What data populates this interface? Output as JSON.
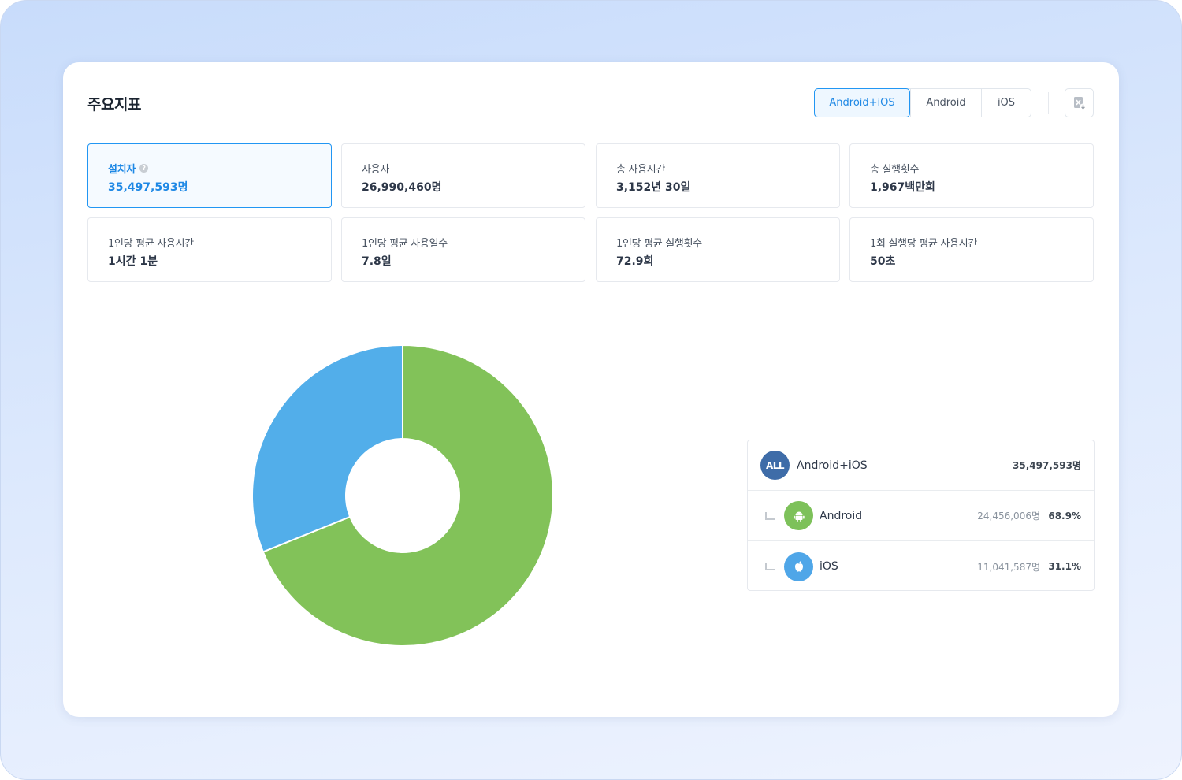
{
  "page": {
    "title": "주요지표"
  },
  "platform_filter": {
    "options": [
      {
        "label": "Android+iOS",
        "active": true
      },
      {
        "label": "Android",
        "active": false
      },
      {
        "label": "iOS",
        "active": false
      }
    ]
  },
  "toolbar": {
    "excel_icon": "excel-download-icon"
  },
  "metrics": [
    {
      "label": "설치자",
      "value": "35,497,593명",
      "selected": true,
      "help": "?"
    },
    {
      "label": "사용자",
      "value": "26,990,460명",
      "selected": false
    },
    {
      "label": "총 사용시간",
      "value": "3,152년 30일",
      "selected": false
    },
    {
      "label": "총 실행횟수",
      "value": "1,967백만회",
      "selected": false
    },
    {
      "label": "1인당 평균 사용시간",
      "value": "1시간 1분",
      "selected": false
    },
    {
      "label": "1인당 평균 사용일수",
      "value": "7.8일",
      "selected": false
    },
    {
      "label": "1인당 평균 실행횟수",
      "value": "72.9회",
      "selected": false
    },
    {
      "label": "1회 실행당 평균 사용시간",
      "value": "50초",
      "selected": false
    }
  ],
  "legend": {
    "total": {
      "badge": "ALL",
      "name": "Android+iOS",
      "count": "35,497,593명"
    },
    "rows": [
      {
        "icon": "android-icon",
        "name": "Android",
        "count": "24,456,006명",
        "percent": "68.9%"
      },
      {
        "icon": "apple-icon",
        "name": "iOS",
        "count": "11,041,587명",
        "percent": "31.1%"
      }
    ]
  },
  "chart_data": {
    "type": "pie",
    "donut": true,
    "categories": [
      "Android",
      "iOS"
    ],
    "values": [
      24456006,
      11041587
    ],
    "colors": [
      "#82c259",
      "#52aeea"
    ],
    "title": "",
    "legend_placement": "right"
  }
}
